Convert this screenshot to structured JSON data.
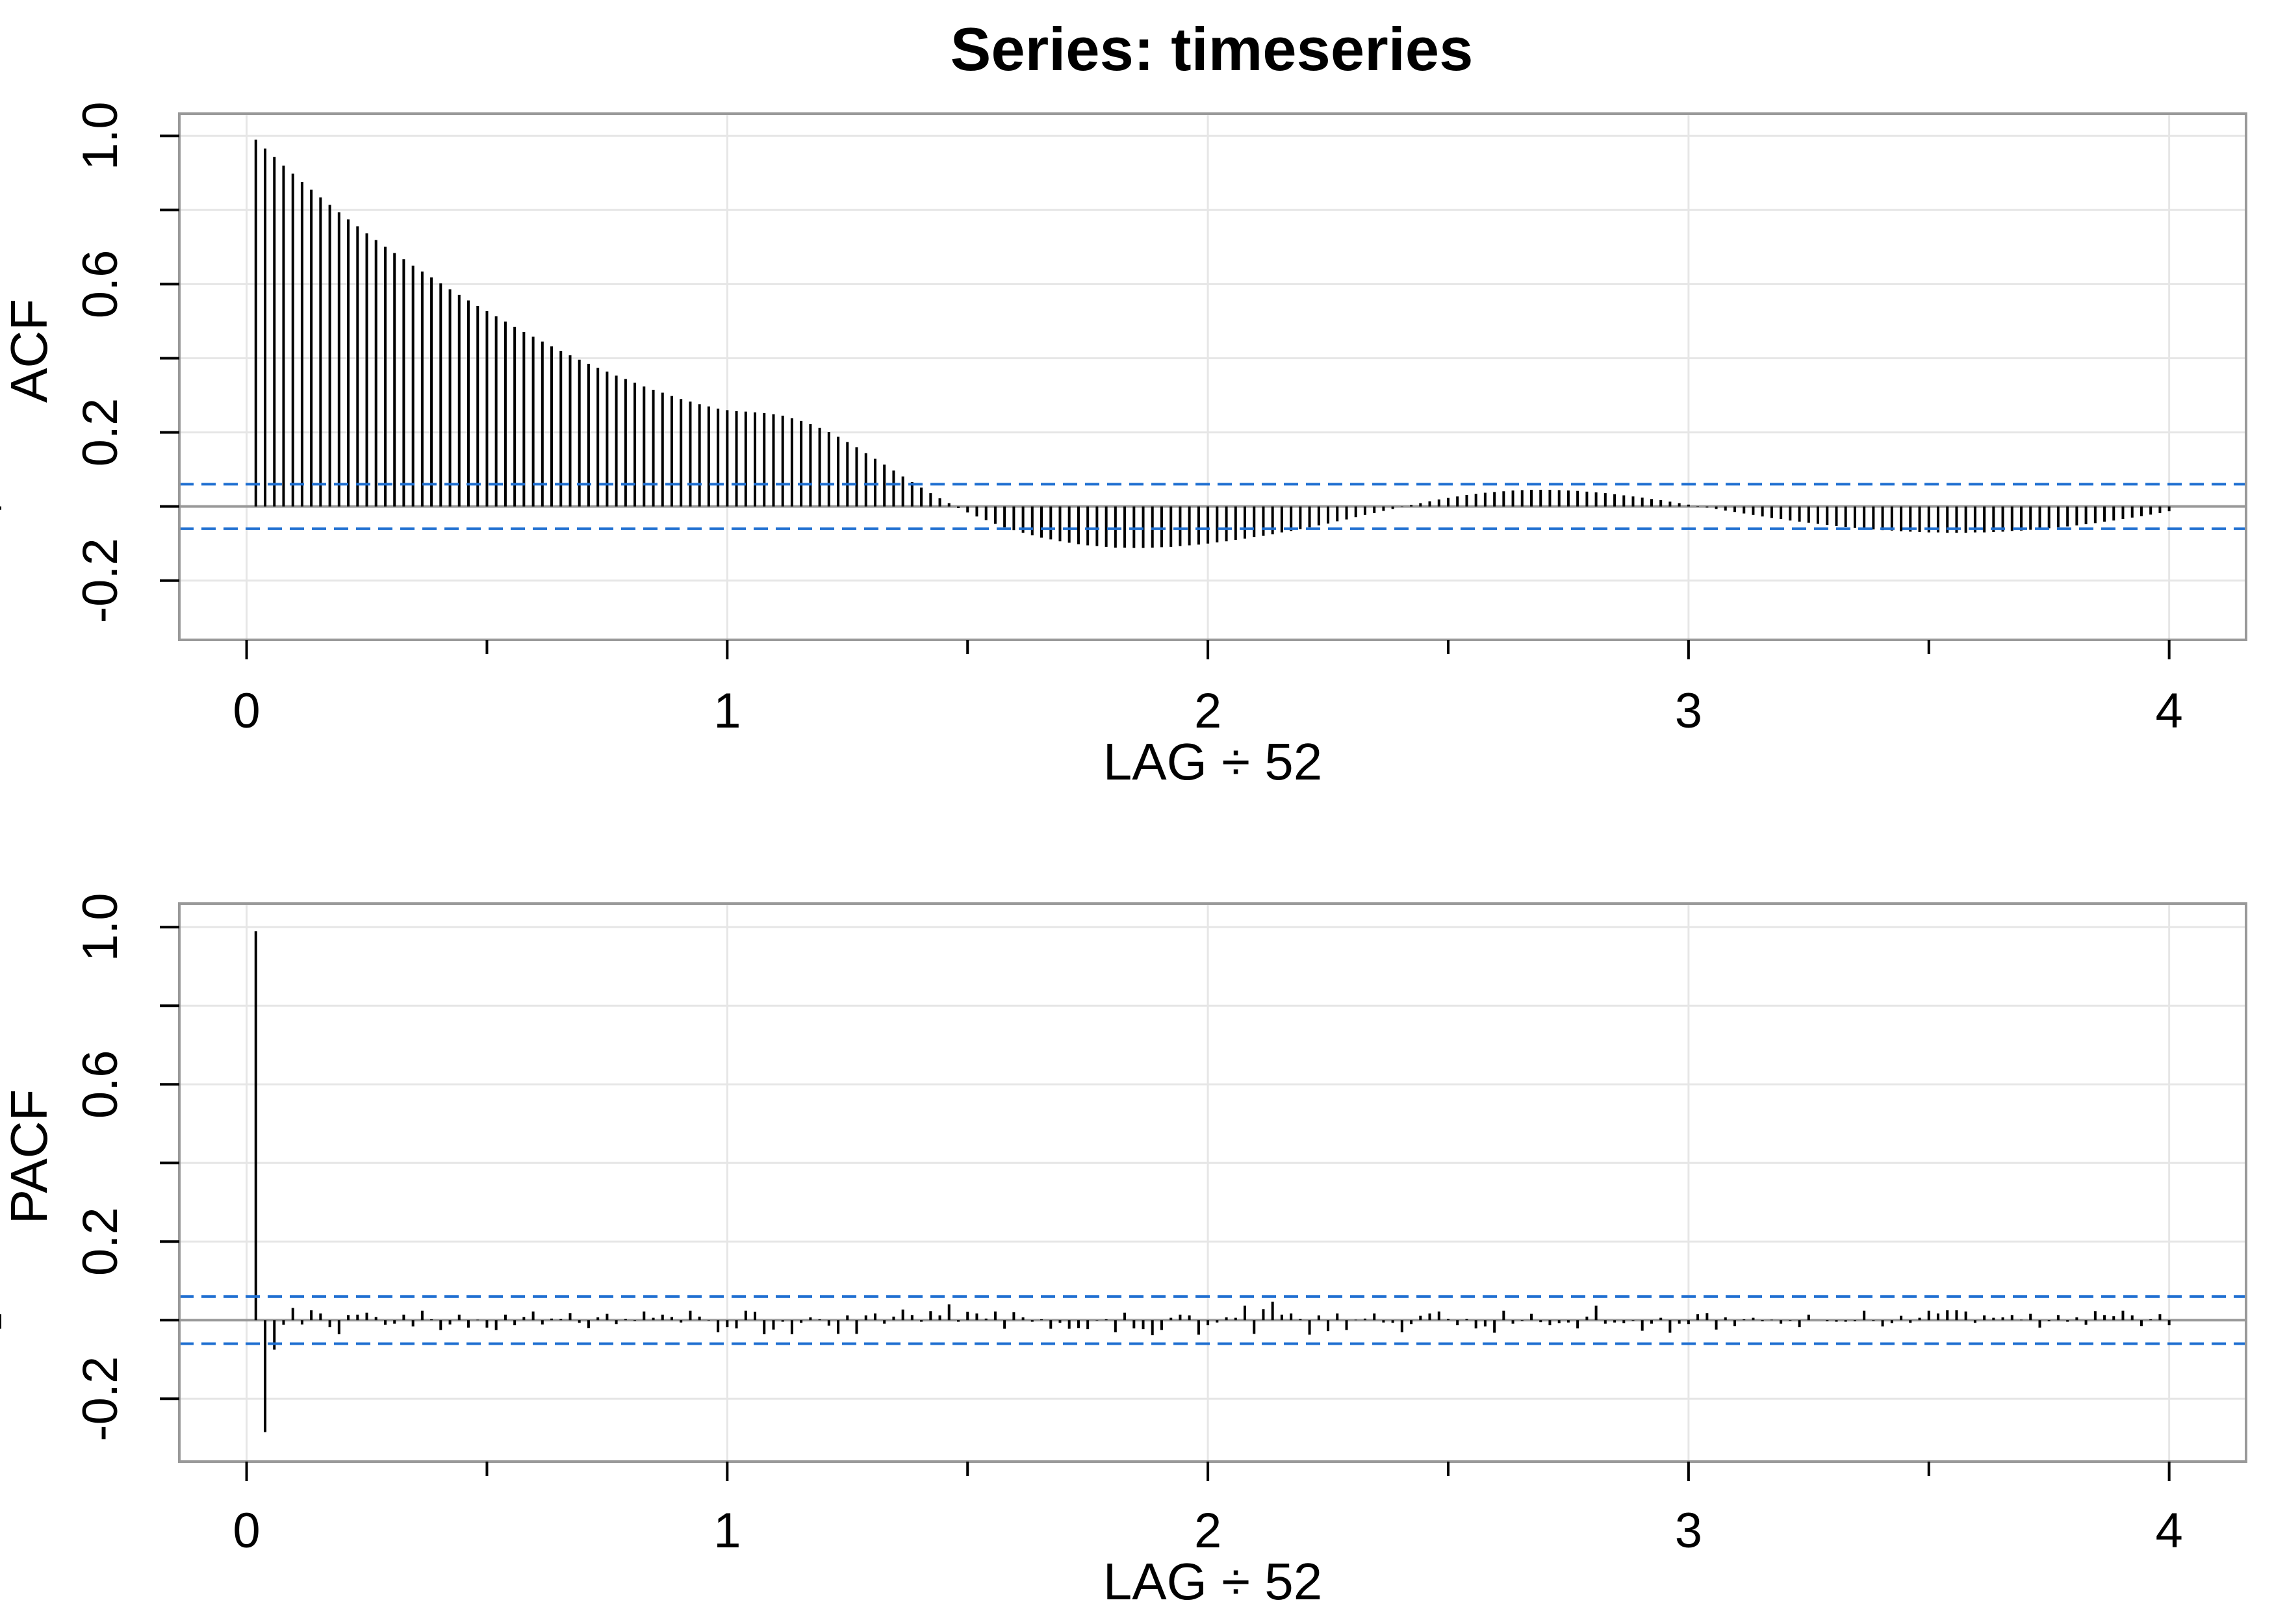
{
  "figure": {
    "title": "Series:  timeseries"
  },
  "colors": {
    "spike": "#000000",
    "zero_line": "#999999",
    "grid": "#e6e6e6",
    "frame": "#999999",
    "confidence": "#1f6fd1"
  },
  "chart_data": [
    {
      "type": "bar",
      "name": "acf",
      "title": "Series:  timeseries",
      "xlabel": "LAG ÷ 52",
      "ylabel": "ACF",
      "x_ticks": [
        "0",
        "1",
        "2",
        "3",
        "4"
      ],
      "y_ticks": [
        "-0.2",
        "0.2",
        "0.6",
        "1.0"
      ],
      "xlim": [
        -0.14,
        4.16
      ],
      "ylim": [
        -0.36,
        1.06
      ],
      "grid": true,
      "confidence_band": [
        0.06,
        -0.06
      ],
      "lag_x": [
        0.0192,
        0.0385,
        0.0577,
        0.0769,
        0.0962,
        0.1154,
        0.1346,
        0.1538,
        0.1731,
        0.1923,
        0.2115,
        0.2308,
        0.25,
        0.2692,
        0.2885,
        0.3077,
        0.3269,
        0.3462,
        0.3654,
        0.3846,
        0.4038,
        0.4231,
        0.4423,
        0.4615,
        0.4808,
        0.5,
        0.5192,
        0.5385,
        0.5577,
        0.5769,
        0.5962,
        0.6154,
        0.6346,
        0.6538,
        0.6731,
        0.6923,
        0.7115,
        0.7308,
        0.75,
        0.7692,
        0.7885,
        0.8077,
        0.8269,
        0.8462,
        0.8654,
        0.8846,
        0.9038,
        0.9231,
        0.9423,
        0.9615,
        0.9808,
        1.0,
        1.0192,
        1.0385,
        1.0577,
        1.0769,
        1.0962,
        1.1154,
        1.1346,
        1.1538,
        1.1731,
        1.1923,
        1.2115,
        1.2308,
        1.25,
        1.2692,
        1.2885,
        1.3077,
        1.3269,
        1.3462,
        1.3654,
        1.3846,
        1.4038,
        1.4231,
        1.4423,
        1.4615,
        1.4808,
        1.5,
        1.5192,
        1.5385,
        1.5577,
        1.5769,
        1.5962,
        1.6154,
        1.6346,
        1.6538,
        1.6731,
        1.6923,
        1.7115,
        1.7308,
        1.75,
        1.7692,
        1.7885,
        1.8077,
        1.8269,
        1.8462,
        1.8654,
        1.8846,
        1.9038,
        1.9231,
        1.9423,
        1.9615,
        1.9808,
        2.0,
        2.0192,
        2.0385,
        2.0577,
        2.0769,
        2.0962,
        2.1154,
        2.1346,
        2.1538,
        2.1731,
        2.1923,
        2.2115,
        2.2308,
        2.25,
        2.2692,
        2.2885,
        2.3077,
        2.3269,
        2.3462,
        2.3654,
        2.3846,
        2.4038,
        2.4231,
        2.4423,
        2.4615,
        2.4808,
        2.5,
        2.5192,
        2.5385,
        2.5577,
        2.5769,
        2.5962,
        2.6154,
        2.6346,
        2.6538,
        2.6731,
        2.6923,
        2.7115,
        2.7308,
        2.75,
        2.7692,
        2.7885,
        2.8077,
        2.8269,
        2.8462,
        2.8654,
        2.8846,
        2.9038,
        2.9231,
        2.9423,
        2.9615,
        2.9808,
        3.0,
        3.0192,
        3.0385,
        3.0577,
        3.0769,
        3.0962,
        3.1154,
        3.1346,
        3.1538,
        3.1731,
        3.1923,
        3.2115,
        3.2308,
        3.25,
        3.2692,
        3.2885,
        3.3077,
        3.3269,
        3.3462,
        3.3654,
        3.3846,
        3.4038,
        3.4231,
        3.4423,
        3.4615,
        3.4808,
        3.5,
        3.5192,
        3.5385,
        3.5577,
        3.5769,
        3.5962,
        3.6154,
        3.6346,
        3.6538,
        3.6731,
        3.6923,
        3.7115,
        3.7308,
        3.75,
        3.7692,
        3.7885,
        3.8077,
        3.8269,
        3.8462,
        3.8654,
        3.8846,
        3.9038,
        3.9231,
        3.9423,
        3.9615,
        3.9808,
        4.0
      ],
      "values": [
        0.99,
        0.966,
        0.943,
        0.92,
        0.898,
        0.876,
        0.855,
        0.834,
        0.814,
        0.794,
        0.775,
        0.756,
        0.737,
        0.719,
        0.701,
        0.684,
        0.667,
        0.65,
        0.634,
        0.618,
        0.602,
        0.586,
        0.571,
        0.556,
        0.541,
        0.527,
        0.513,
        0.499,
        0.485,
        0.471,
        0.458,
        0.445,
        0.432,
        0.42,
        0.408,
        0.396,
        0.385,
        0.374,
        0.364,
        0.353,
        0.344,
        0.334,
        0.324,
        0.315,
        0.307,
        0.298,
        0.29,
        0.283,
        0.276,
        0.27,
        0.264,
        0.26,
        0.257,
        0.256,
        0.254,
        0.252,
        0.249,
        0.245,
        0.238,
        0.231,
        0.222,
        0.212,
        0.201,
        0.188,
        0.174,
        0.16,
        0.144,
        0.129,
        0.113,
        0.097,
        0.081,
        0.066,
        0.051,
        0.036,
        0.022,
        0.009,
        -0.004,
        -0.016,
        -0.027,
        -0.037,
        -0.047,
        -0.056,
        -0.064,
        -0.071,
        -0.078,
        -0.084,
        -0.089,
        -0.094,
        -0.098,
        -0.102,
        -0.105,
        -0.107,
        -0.109,
        -0.111,
        -0.111,
        -0.112,
        -0.112,
        -0.111,
        -0.11,
        -0.109,
        -0.107,
        -0.105,
        -0.103,
        -0.1,
        -0.097,
        -0.094,
        -0.09,
        -0.087,
        -0.083,
        -0.079,
        -0.075,
        -0.07,
        -0.066,
        -0.061,
        -0.056,
        -0.051,
        -0.046,
        -0.04,
        -0.035,
        -0.029,
        -0.023,
        -0.018,
        -0.012,
        -0.007,
        -0.001,
        0.004,
        0.009,
        0.014,
        0.019,
        0.023,
        0.027,
        0.031,
        0.034,
        0.037,
        0.039,
        0.041,
        0.043,
        0.044,
        0.045,
        0.045,
        0.045,
        0.044,
        0.043,
        0.042,
        0.04,
        0.038,
        0.036,
        0.033,
        0.03,
        0.027,
        0.024,
        0.02,
        0.017,
        0.013,
        0.009,
        0.005,
        0.001,
        -0.003,
        -0.007,
        -0.011,
        -0.015,
        -0.019,
        -0.023,
        -0.027,
        -0.031,
        -0.034,
        -0.038,
        -0.041,
        -0.044,
        -0.047,
        -0.05,
        -0.053,
        -0.055,
        -0.058,
        -0.06,
        -0.062,
        -0.064,
        -0.065,
        -0.067,
        -0.068,
        -0.069,
        -0.07,
        -0.07,
        -0.071,
        -0.071,
        -0.071,
        -0.07,
        -0.07,
        -0.069,
        -0.068,
        -0.066,
        -0.065,
        -0.063,
        -0.061,
        -0.059,
        -0.056,
        -0.054,
        -0.051,
        -0.048,
        -0.045,
        -0.041,
        -0.038,
        -0.034,
        -0.03,
        -0.026,
        -0.022,
        -0.018,
        -0.013,
        -0.009,
        -0.004
      ]
    },
    {
      "type": "bar",
      "name": "pacf",
      "title": "",
      "xlabel": "LAG ÷ 52",
      "ylabel": "PACF",
      "x_ticks": [
        "0",
        "1",
        "2",
        "3",
        "4"
      ],
      "y_ticks": [
        "-0.2",
        "0.2",
        "0.6",
        "1.0"
      ],
      "xlim": [
        -0.14,
        4.16
      ],
      "ylim": [
        -0.36,
        1.06
      ],
      "grid": true,
      "confidence_band": [
        0.06,
        -0.06
      ],
      "lag_x": [
        0.0192,
        0.0385,
        0.0577,
        0.0769,
        0.0962,
        0.1154,
        0.1346,
        0.1538,
        0.1731,
        0.1923,
        0.2115,
        0.2308,
        0.25,
        0.2692,
        0.2885,
        0.3077,
        0.3269,
        0.3462,
        0.3654,
        0.3846,
        0.4038,
        0.4231,
        0.4423,
        0.4615,
        0.4808,
        0.5,
        0.5192,
        0.5385,
        0.5577,
        0.5769,
        0.5962,
        0.6154,
        0.6346,
        0.6538,
        0.6731,
        0.6923,
        0.7115,
        0.7308,
        0.75,
        0.7692,
        0.7885,
        0.8077,
        0.8269,
        0.8462,
        0.8654,
        0.8846,
        0.9038,
        0.9231,
        0.9423,
        0.9615,
        0.9808,
        1.0,
        1.0192,
        1.0385,
        1.0577,
        1.0769,
        1.0962,
        1.1154,
        1.1346,
        1.1538,
        1.1731,
        1.1923,
        1.2115,
        1.2308,
        1.25,
        1.2692,
        1.2885,
        1.3077,
        1.3269,
        1.3462,
        1.3654,
        1.3846,
        1.4038,
        1.4231,
        1.4423,
        1.4615,
        1.4808,
        1.5,
        1.5192,
        1.5385,
        1.5577,
        1.5769,
        1.5962,
        1.6154,
        1.6346,
        1.6538,
        1.6731,
        1.6923,
        1.7115,
        1.7308,
        1.75,
        1.7692,
        1.7885,
        1.8077,
        1.8269,
        1.8462,
        1.8654,
        1.8846,
        1.9038,
        1.9231,
        1.9423,
        1.9615,
        1.9808,
        2.0,
        2.0192,
        2.0385,
        2.0577,
        2.0769,
        2.0962,
        2.1154,
        2.1346,
        2.1538,
        2.1731,
        2.1923,
        2.2115,
        2.2308,
        2.25,
        2.2692,
        2.2885,
        2.3077,
        2.3269,
        2.3462,
        2.3654,
        2.3846,
        2.4038,
        2.4231,
        2.4423,
        2.4615,
        2.4808,
        2.5,
        2.5192,
        2.5385,
        2.5577,
        2.5769,
        2.5962,
        2.6154,
        2.6346,
        2.6538,
        2.6731,
        2.6923,
        2.7115,
        2.7308,
        2.75,
        2.7692,
        2.7885,
        2.8077,
        2.8269,
        2.8462,
        2.8654,
        2.8846,
        2.9038,
        2.9231,
        2.9423,
        2.9615,
        2.9808,
        3.0,
        3.0192,
        3.0385,
        3.0577,
        3.0769,
        3.0962,
        3.1154,
        3.1346,
        3.1538,
        3.1731,
        3.1923,
        3.2115,
        3.2308,
        3.25,
        3.2692,
        3.2885,
        3.3077,
        3.3269,
        3.3462,
        3.3654,
        3.3846,
        3.4038,
        3.4231,
        3.4423,
        3.4615,
        3.4808,
        3.5,
        3.5192,
        3.5385,
        3.5577,
        3.5769,
        3.5962,
        3.6154,
        3.6346,
        3.6538,
        3.6731,
        3.6923,
        3.7115,
        3.7308,
        3.75,
        3.7692,
        3.7885,
        3.8077,
        3.8269,
        3.8462,
        3.8654,
        3.8846,
        3.9038,
        3.9231,
        3.9423,
        3.9615,
        3.9808,
        4.0
      ],
      "values": [
        0.99,
        -0.285,
        -0.075,
        -0.012,
        0.031,
        -0.011,
        0.025,
        0.017,
        -0.018,
        -0.036,
        0.013,
        0.014,
        0.019,
        0.008,
        -0.012,
        -0.009,
        0.014,
        -0.016,
        0.024,
        0.002,
        -0.025,
        -0.011,
        0.014,
        -0.019,
        0.001,
        -0.019,
        -0.025,
        0.014,
        -0.013,
        0.008,
        0.022,
        -0.011,
        0.004,
        0.003,
        0.018,
        -0.007,
        -0.02,
        0.007,
        0.016,
        -0.01,
        0.003,
        -0.002,
        0.022,
        0.006,
        0.014,
        0.008,
        -0.006,
        0.024,
        0.009,
        -0.001,
        -0.031,
        -0.018,
        -0.021,
        0.024,
        0.021,
        -0.036,
        -0.024,
        -0.004,
        -0.036,
        -0.007,
        0.007,
        0.002,
        -0.014,
        -0.035,
        0.012,
        -0.035,
        0.012,
        0.017,
        -0.009,
        0.009,
        0.027,
        0.013,
        -0.004,
        0.023,
        0.012,
        0.04,
        -0.004,
        0.021,
        0.017,
        0.004,
        0.022,
        -0.022,
        0.02,
        0.007,
        -0.004,
        0.002,
        -0.022,
        -0.007,
        -0.022,
        -0.02,
        -0.023,
        -0.001,
        0.002,
        -0.031,
        0.019,
        -0.021,
        -0.023,
        -0.038,
        -0.025,
        0.006,
        0.014,
        0.012,
        -0.037,
        -0.013,
        -0.006,
        0.007,
        0.006,
        0.037,
        -0.035,
        0.028,
        0.047,
        0.014,
        0.017,
        0.003,
        -0.037,
        0.012,
        -0.028,
        0.017,
        -0.025,
        0.001,
        0.004,
        0.017,
        -0.006,
        -0.007,
        -0.031,
        -0.01,
        0.011,
        0.017,
        0.022,
        0.003,
        -0.013,
        0.003,
        -0.021,
        -0.016,
        -0.032,
        0.024,
        -0.009,
        -0.002,
        0.016,
        -0.005,
        -0.013,
        -0.008,
        -0.006,
        -0.021,
        0.009,
        0.037,
        -0.009,
        -0.006,
        -0.008,
        -0.002,
        -0.027,
        -0.009,
        0.006,
        -0.032,
        -0.009,
        -0.01,
        0.015,
        0.018,
        -0.024,
        0.007,
        -0.015,
        0.002,
        0.006,
        -0.003,
        0.001,
        -0.009,
        -0.002,
        -0.018,
        0.014,
        0.0,
        -0.003,
        -0.004,
        -0.004,
        -0.003,
        0.024,
        -0.002,
        -0.016,
        -0.008,
        0.011,
        -0.007,
        0.006,
        0.024,
        0.017,
        0.025,
        0.025,
        0.022,
        -0.007,
        0.012,
        0.006,
        0.007,
        0.013,
        0.001,
        0.016,
        -0.019,
        -0.003,
        0.013,
        -0.004,
        0.007,
        -0.012,
        0.023,
        0.013,
        0.01,
        0.024,
        0.012,
        -0.015,
        0.002,
        0.015,
        -0.013,
        0.015,
        0.011,
        -0.004,
        -0.022,
        -0.017,
        0.003,
        -0.013
      ]
    }
  ]
}
